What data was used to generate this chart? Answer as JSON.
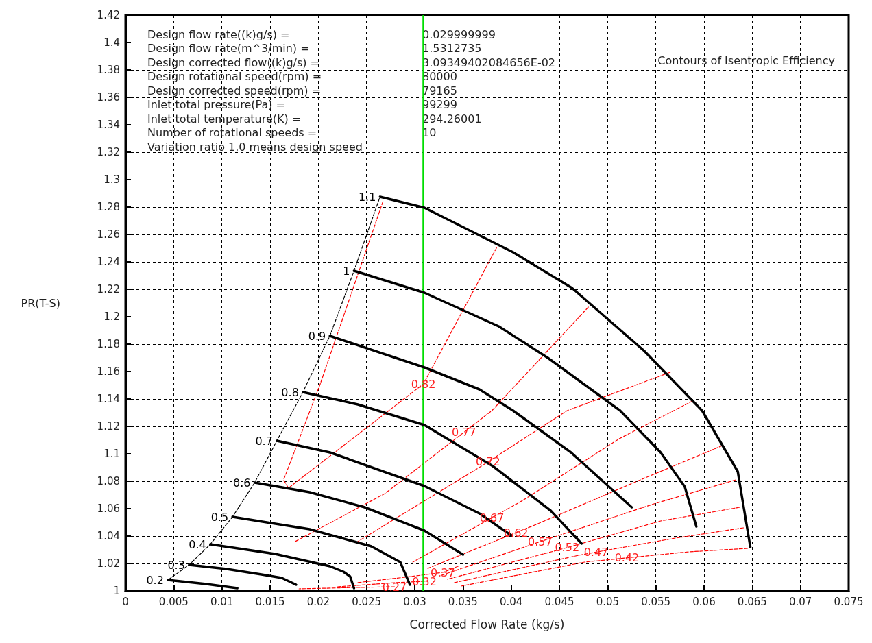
{
  "chart_data": {
    "type": "line",
    "xlabel": "Corrected Flow Rate (kg/s)",
    "ylabel": "PR(T-S)",
    "xlim": [
      0,
      0.075
    ],
    "xticks": [
      0,
      0.005,
      0.01,
      0.015,
      0.02,
      0.025,
      0.03,
      0.035,
      0.04,
      0.045,
      0.05,
      0.055,
      0.06,
      0.065,
      0.07,
      0.075
    ],
    "ylim": [
      1,
      1.42
    ],
    "yticks": [
      1,
      1.02,
      1.04,
      1.06,
      1.08,
      1.1,
      1.12,
      1.14,
      1.16,
      1.18,
      1.2,
      1.22,
      1.24,
      1.26,
      1.28,
      1.3,
      1.32,
      1.34,
      1.36,
      1.38,
      1.4,
      1.42
    ],
    "grid": true,
    "legend": false,
    "marker": "none",
    "ref_lines": [
      {
        "axis": "x",
        "value": 0.0309,
        "color": "#00dd00"
      }
    ],
    "series": [
      {
        "name": "0.2",
        "color": "#000000",
        "line_style": "solid",
        "x": [
          0.0044,
          0.0084,
          0.0116
        ],
        "values": [
          1.008,
          1.005,
          1.002
        ]
      },
      {
        "name": "0.3",
        "color": "#000000",
        "line_style": "solid",
        "x": [
          0.0066,
          0.0105,
          0.0141,
          0.0162,
          0.0177
        ],
        "values": [
          1.019,
          1.016,
          1.012,
          1.0095,
          1.0045
        ]
      },
      {
        "name": "0.4",
        "color": "#000000",
        "line_style": "solid",
        "x": [
          0.0088,
          0.0155,
          0.0212,
          0.0226,
          0.0233,
          0.0237
        ],
        "values": [
          1.034,
          1.027,
          1.018,
          1.014,
          1.0105,
          1.002
        ]
      },
      {
        "name": "0.5",
        "color": "#000000",
        "line_style": "solid",
        "x": [
          0.0111,
          0.0191,
          0.0255,
          0.0285,
          0.0295
        ],
        "values": [
          1.054,
          1.045,
          1.0325,
          1.021,
          1.0045
        ]
      },
      {
        "name": "0.6",
        "color": "#000000",
        "line_style": "solid",
        "x": [
          0.0134,
          0.0191,
          0.0248,
          0.031,
          0.035
        ],
        "values": [
          1.079,
          1.072,
          1.061,
          1.044,
          1.0265
        ]
      },
      {
        "name": "0.7",
        "color": "#000000",
        "line_style": "solid",
        "x": [
          0.0157,
          0.0212,
          0.031,
          0.0367,
          0.0401
        ],
        "values": [
          1.1095,
          1.101,
          1.0765,
          1.0565,
          1.04
        ]
      },
      {
        "name": "0.8",
        "color": "#000000",
        "line_style": "solid",
        "x": [
          0.0184,
          0.0241,
          0.031,
          0.0381,
          0.0441,
          0.0473
        ],
        "values": [
          1.145,
          1.136,
          1.121,
          1.091,
          1.0585,
          1.0345
        ]
      },
      {
        "name": "0.9",
        "color": "#000000",
        "line_style": "solid",
        "x": [
          0.0212,
          0.031,
          0.0367,
          0.0402,
          0.0462,
          0.0525
        ],
        "values": [
          1.186,
          1.163,
          1.147,
          1.1315,
          1.101,
          1.061
        ]
      },
      {
        "name": "1",
        "color": "#000000",
        "line_style": "solid",
        "x": [
          0.0237,
          0.031,
          0.0387,
          0.0438,
          0.0513,
          0.0555,
          0.058,
          0.0592
        ],
        "values": [
          1.2335,
          1.2175,
          1.193,
          1.17,
          1.1315,
          1.101,
          1.076,
          1.047
        ]
      },
      {
        "name": "1.1",
        "color": "#000000",
        "line_style": "solid",
        "x": [
          0.0264,
          0.031,
          0.0402,
          0.0463,
          0.0538,
          0.0598,
          0.0635,
          0.0648
        ],
        "values": [
          1.2875,
          1.2795,
          1.247,
          1.221,
          1.175,
          1.1315,
          1.087,
          1.032
        ]
      },
      {
        "color": "#000000",
        "line_style": "dashed",
        "x": [
          0.0044,
          0.0066,
          0.0088,
          0.0111,
          0.0134,
          0.0157,
          0.0184,
          0.0212,
          0.0237,
          0.0264
        ],
        "values": [
          1.008,
          1.019,
          1.034,
          1.054,
          1.079,
          1.1095,
          1.145,
          1.186,
          1.2335,
          1.2875
        ]
      },
      {
        "color": "#ff0000",
        "line_style": "dashed",
        "x": [
          0.0267,
          0.0202,
          0.0164,
          0.0169,
          0.0309,
          0.0385
        ],
        "values": [
          1.284,
          1.151,
          1.081,
          1.075,
          1.151,
          1.2505
        ]
      },
      {
        "color": "#ff0000",
        "line_style": "dashed",
        "x": [
          0.048,
          0.038,
          0.0351,
          0.0269,
          0.0176
        ],
        "values": [
          1.207,
          1.1315,
          1.1157,
          1.071,
          1.036
        ]
      },
      {
        "color": "#ff0000",
        "line_style": "dashed",
        "x": [
          0.0565,
          0.0458,
          0.0376,
          0.0369,
          0.0241
        ],
        "values": [
          1.1595,
          1.1315,
          1.0942,
          1.091,
          1.036
        ]
      },
      {
        "color": "#ff0000",
        "line_style": "dashed",
        "x": [
          0.0588,
          0.0512,
          0.0412,
          0.038,
          0.0298
        ],
        "values": [
          1.1385,
          1.111,
          1.066,
          1.0534,
          1.021
        ]
      },
      {
        "color": "#ff0000",
        "line_style": "dashed",
        "x": [
          0.0619,
          0.0534,
          0.0426,
          0.0405,
          0.0312
        ],
        "values": [
          1.106,
          1.081,
          1.0485,
          1.0425,
          1.016
        ]
      },
      {
        "color": "#ff0000",
        "line_style": "dashed",
        "x": [
          0.0633,
          0.0548,
          0.0441,
          0.043,
          0.0326
        ],
        "values": [
          1.081,
          1.0635,
          1.0385,
          1.0359,
          1.011
        ]
      },
      {
        "color": "#ff0000",
        "line_style": "dashed",
        "x": [
          0.0637,
          0.0555,
          0.0458,
          0.0455,
          0.0334
        ],
        "values": [
          1.061,
          1.051,
          1.0316,
          1.031,
          1.0085
        ]
      },
      {
        "color": "#ff0000",
        "line_style": "dashed",
        "x": [
          0.0641,
          0.057,
          0.0488,
          0.047,
          0.0341
        ],
        "values": [
          1.046,
          1.0385,
          1.0283,
          1.026,
          1.006
        ]
      },
      {
        "color": "#ff0000",
        "line_style": "dashed",
        "x": [
          0.0645,
          0.0584,
          0.052,
          0.0476,
          0.0348
        ],
        "values": [
          1.031,
          1.0285,
          1.0241,
          1.021,
          1.0035
        ]
      },
      {
        "color": "#ff0000",
        "line_style": "dashed",
        "x": [
          0.0345,
          0.0329,
          0.029,
          0.024
        ],
        "values": [
          1.018,
          1.0135,
          1.01,
          1.006
        ]
      },
      {
        "color": "#ff0000",
        "line_style": "dashed",
        "x": [
          0.031,
          0.028,
          0.022
        ],
        "values": [
          1.007,
          1.006,
          1.003
        ]
      },
      {
        "color": "#ff0000",
        "line_style": "dashed",
        "x": [
          0.0279,
          0.024,
          0.018
        ],
        "values": [
          1.003,
          1.0025,
          1.0015
        ]
      }
    ],
    "annotations": [
      "Design flow rate((k)g/s) =\t0.029999999",
      "Design flow rate(m^3/min) =\t1.5312735",
      "Design corrected flow((k)g/s) =\t3.09349402084656E-02",
      "Design rotational speed(rpm) =\t80000",
      "Design corrected speed(rpm) =\t79165",
      "Inlet total pressure(Pa) =\t99299",
      "Inlet total temperature(K) =\t294.26001",
      "Number of rotational speeds =\t10",
      "Variation ratio 1.0 means design speed",
      "Contours of Isentropic Efficiency",
      {
        "text": "0.82",
        "x": 0.0309,
        "y": 1.151
      },
      {
        "text": "0.77",
        "x": 0.0351,
        "y": 1.1157
      },
      {
        "text": "0.72",
        "x": 0.0376,
        "y": 1.0942
      },
      {
        "text": "0.67",
        "x": 0.038,
        "y": 1.0534
      },
      {
        "text": "0.62",
        "x": 0.0405,
        "y": 1.0425
      },
      {
        "text": "0.57",
        "x": 0.043,
        "y": 1.0359
      },
      {
        "text": "0.52",
        "x": 0.0458,
        "y": 1.0316
      },
      {
        "text": "0.47",
        "x": 0.0488,
        "y": 1.0283
      },
      {
        "text": "0.42",
        "x": 0.052,
        "y": 1.0241
      },
      {
        "text": "0.37",
        "x": 0.0329,
        "y": 1.0135
      },
      {
        "text": "0.32",
        "x": 0.031,
        "y": 1.007
      },
      {
        "text": "0.27",
        "x": 0.0279,
        "y": 1.003
      }
    ]
  }
}
